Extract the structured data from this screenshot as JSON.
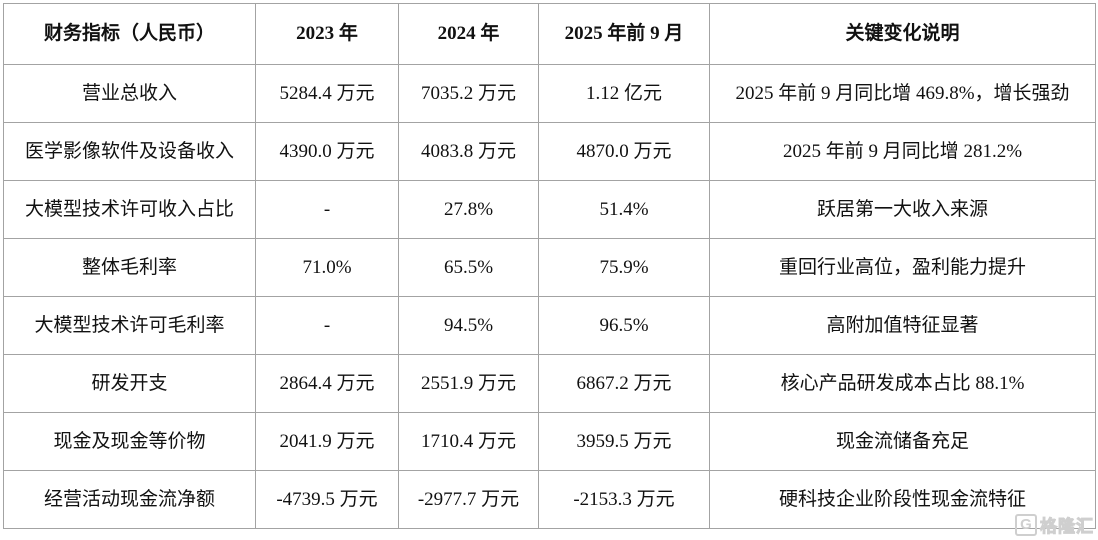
{
  "table": {
    "headers": [
      "财务指标（人民币）",
      "2023 年",
      "2024 年",
      "2025 年前 9 月",
      "关键变化说明"
    ],
    "rows": [
      [
        "营业总收入",
        "5284.4 万元",
        "7035.2 万元",
        "1.12 亿元",
        "2025 年前 9 月同比增 469.8%，增长强劲"
      ],
      [
        "医学影像软件及设备收入",
        "4390.0 万元",
        "4083.8 万元",
        "4870.0 万元",
        "2025 年前 9 月同比增 281.2%"
      ],
      [
        "大模型技术许可收入占比",
        "-",
        "27.8%",
        "51.4%",
        "跃居第一大收入来源"
      ],
      [
        "整体毛利率",
        "71.0%",
        "65.5%",
        "75.9%",
        "重回行业高位，盈利能力提升"
      ],
      [
        "大模型技术许可毛利率",
        "-",
        "94.5%",
        "96.5%",
        "高附加值特征显著"
      ],
      [
        "研发开支",
        "2864.4 万元",
        "2551.9 万元",
        "6867.2 万元",
        "核心产品研发成本占比 88.1%"
      ],
      [
        "现金及现金等价物",
        "2041.9 万元",
        "1710.4 万元",
        "3959.5 万元",
        "现金流储备充足"
      ],
      [
        "经营活动现金流净额",
        "-4739.5 万元",
        "-2977.7 万元",
        "-2153.3 万元",
        "硬科技企业阶段性现金流特征"
      ]
    ]
  },
  "watermark": {
    "logo_letter": "G",
    "text": "格隆汇"
  },
  "colors": {
    "border": "#a3a3a3",
    "text": "#111111",
    "background": "#ffffff",
    "watermark": "#cfcfcf"
  }
}
